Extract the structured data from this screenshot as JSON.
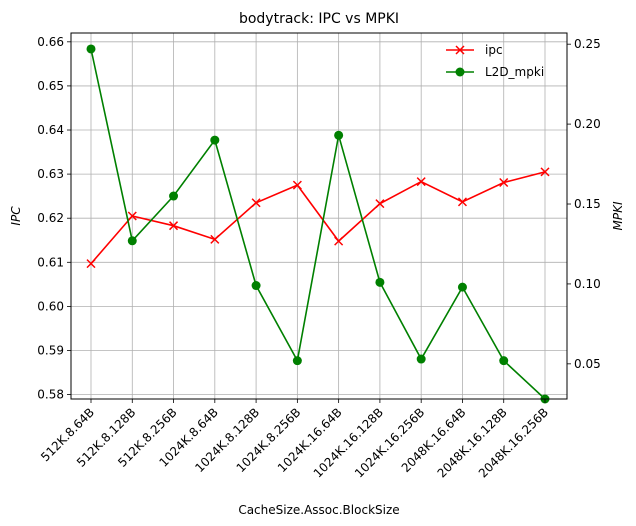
{
  "chart_data": {
    "type": "line",
    "title": "bodytrack: IPC vs MPKI",
    "xlabel": "CacheSize.Assoc.BlockSize",
    "ylabel_left": "IPC",
    "ylabel_right": "MPKI",
    "categories": [
      "512K.8.64B",
      "512K.8.128B",
      "512K.8.256B",
      "1024K.8.64B",
      "1024K.8.128B",
      "1024K.8.256B",
      "1024K.16.64B",
      "1024K.16.128B",
      "1024K.16.256B",
      "2048K.16.64B",
      "2048K.16.128B",
      "2048K.16.256B"
    ],
    "series": [
      {
        "name": "ipc",
        "axis": "left",
        "color": "#ff0000",
        "marker": "x",
        "values": [
          0.6097,
          0.6205,
          0.6183,
          0.6152,
          0.6235,
          0.6275,
          0.6148,
          0.6233,
          0.6283,
          0.6237,
          0.6281,
          0.6305
        ]
      },
      {
        "name": "L2D_mpki",
        "axis": "right",
        "color": "#008000",
        "marker": "o",
        "values": [
          0.247,
          0.127,
          0.155,
          0.19,
          0.099,
          0.052,
          0.193,
          0.101,
          0.053,
          0.098,
          0.052,
          0.028
        ]
      }
    ],
    "ylim_left": [
      0.579,
      0.662
    ],
    "yticks_left": [
      "0.58",
      "0.59",
      "0.60",
      "0.61",
      "0.62",
      "0.63",
      "0.64",
      "0.65",
      "0.66"
    ],
    "ylim_right": [
      0.028,
      0.257
    ],
    "yticks_right": [
      "0.05",
      "0.10",
      "0.15",
      "0.20",
      "0.25"
    ],
    "grid": true,
    "legend_position": "top-right"
  }
}
